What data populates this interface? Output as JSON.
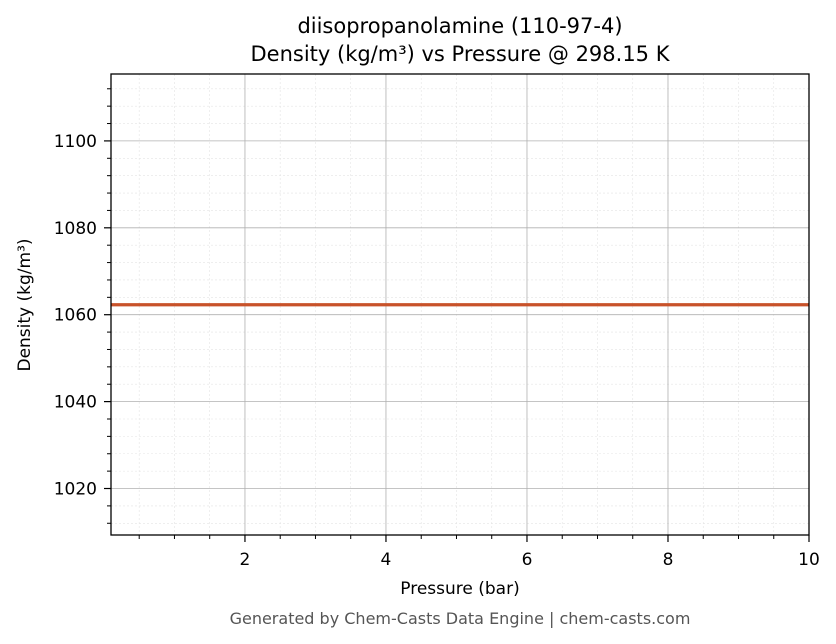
{
  "chart_data": {
    "type": "line",
    "title": "diisopropanolamine (110-97-4)",
    "subtitle": "Density (kg/m³) vs Pressure @ 298.15 K",
    "xlabel": "Pressure (bar)",
    "ylabel": "Density (kg/m³)",
    "xlim": [
      0.1,
      10
    ],
    "ylim": [
      1009.3,
      1115.4
    ],
    "x_ticks": [
      2,
      4,
      6,
      8,
      10
    ],
    "x_tick_labels": [
      "2",
      "4",
      "6",
      "8",
      "10"
    ],
    "y_ticks": [
      1020,
      1040,
      1060,
      1080,
      1100
    ],
    "y_tick_labels": [
      "1020",
      "1040",
      "1060",
      "1080",
      "1100"
    ],
    "grid": true,
    "minor_grid": true,
    "series": [
      {
        "color": "#c8522a",
        "x": [
          0.1,
          10
        ],
        "y": [
          1062.3,
          1062.3
        ]
      }
    ]
  },
  "footer": "Generated by Chem-Casts Data Engine | chem-casts.com"
}
